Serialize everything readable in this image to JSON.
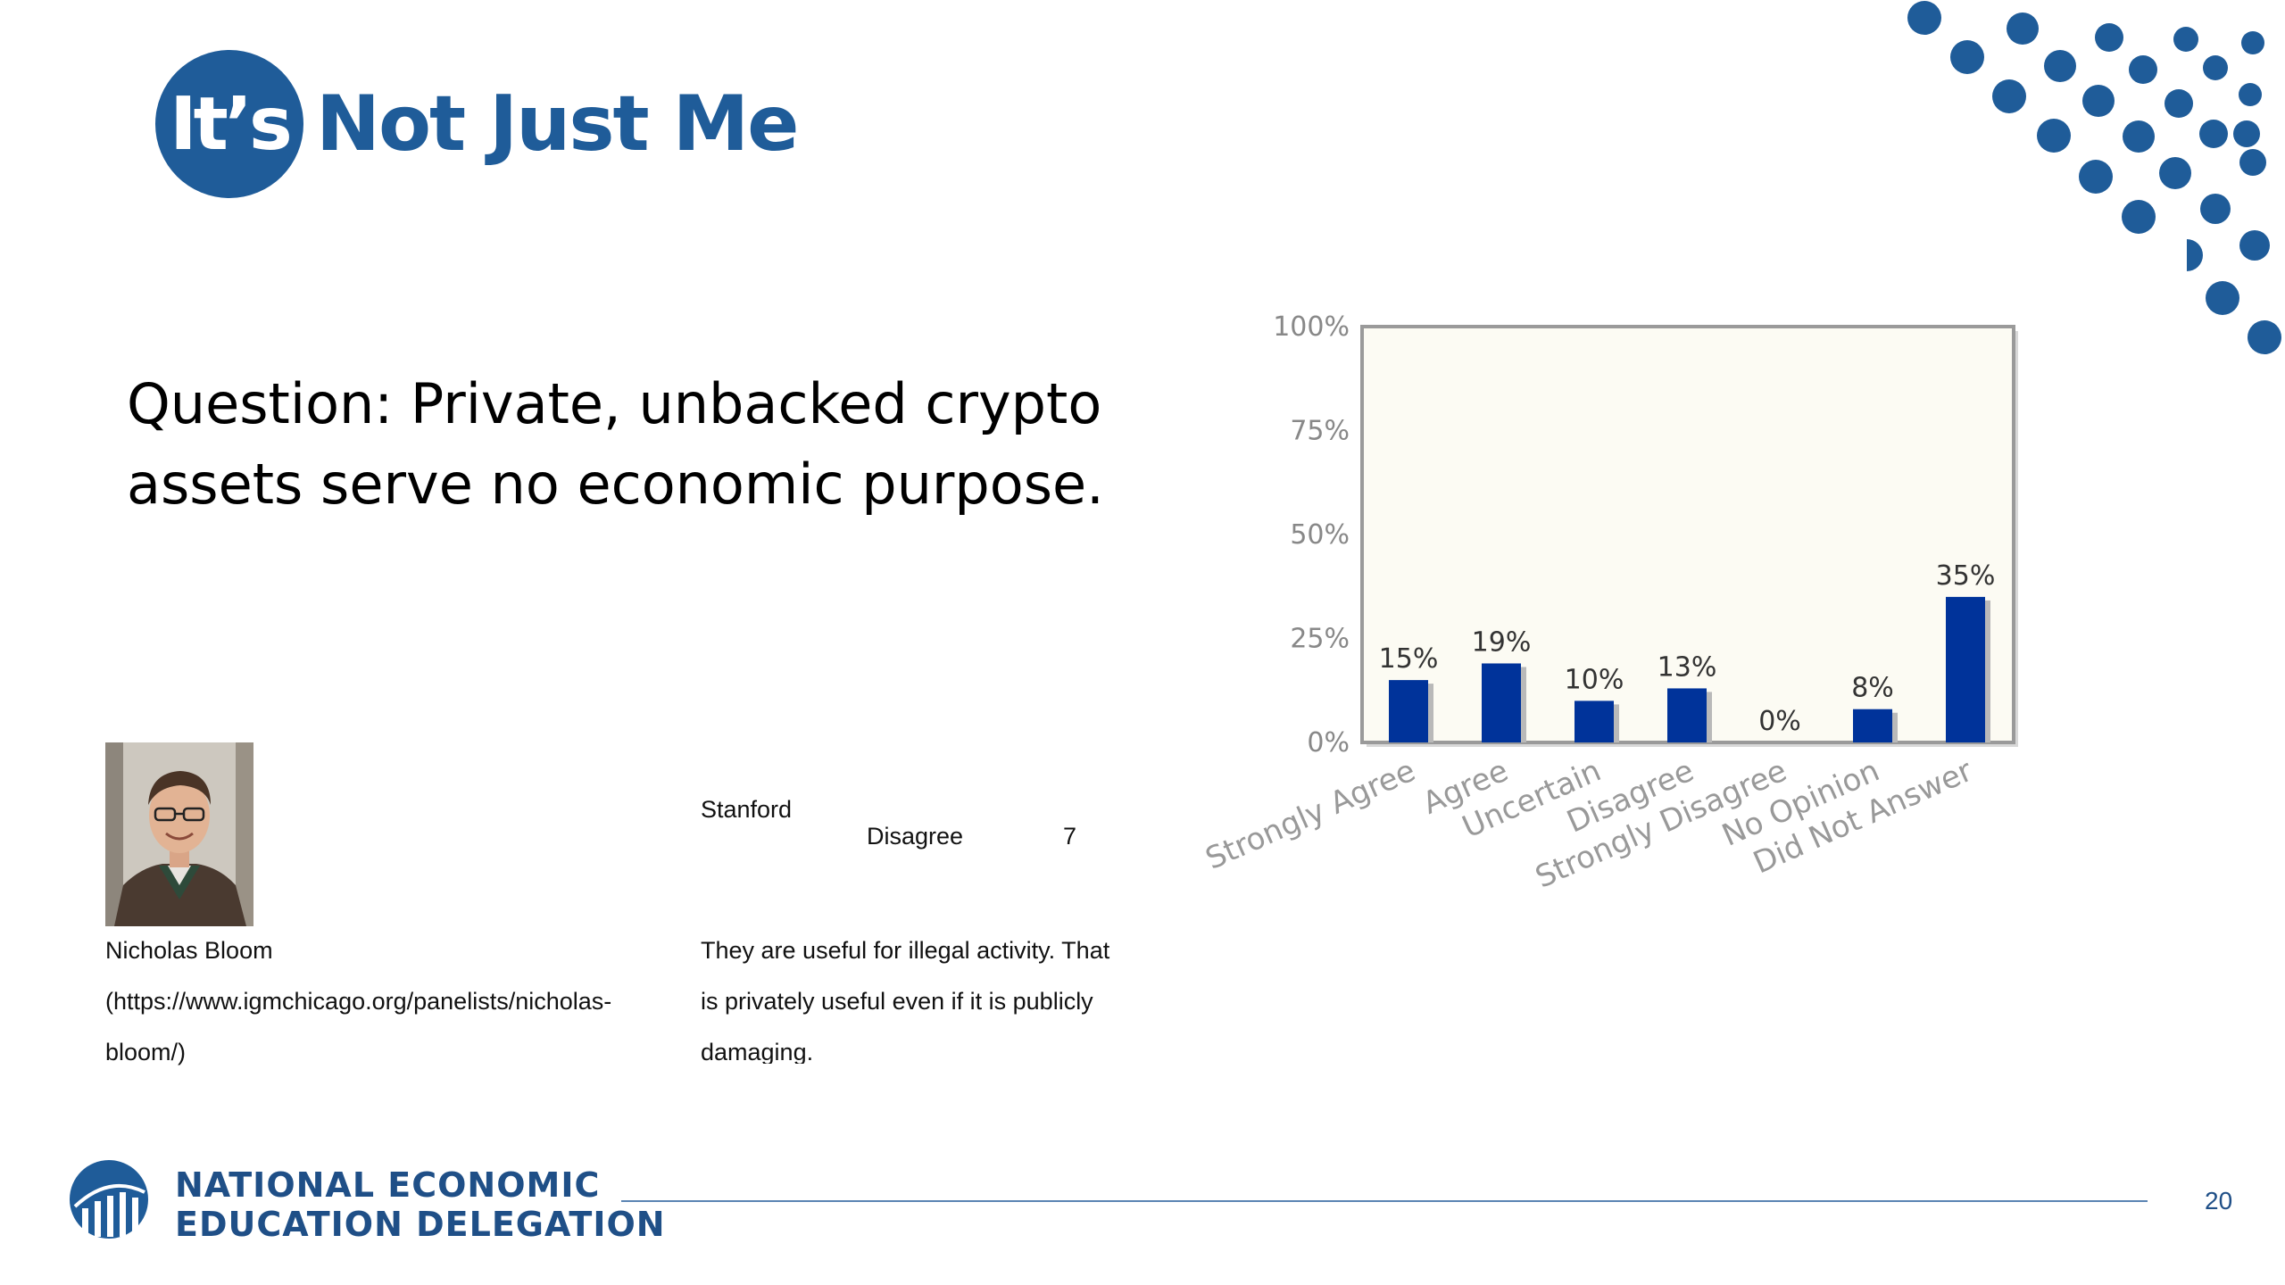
{
  "slide": {
    "title_badge": "It’s",
    "title_rest": "Not Just Me",
    "question_line1": "Question:  Private, unbacked crypto",
    "question_line2": "assets serve no economic purpose.",
    "page_number": "20"
  },
  "panelist": {
    "name": "Nicholas Bloom",
    "url_line1": "(https://www.igmchicago.org/panelists/nicholas-",
    "url_line2": "bloom/)",
    "institution": "Stanford",
    "vote": "Disagree",
    "confidence": "7",
    "comment_line1": "They are useful for illegal activity. That",
    "comment_line2": "is privately useful even if it is publicly",
    "comment_line3": "damaging."
  },
  "footer": {
    "org_line1": "NATIONAL ECONOMIC",
    "org_line2": "EDUCATION DELEGATION"
  },
  "colors": {
    "brand_blue": "#1f5c99",
    "bar_blue": "#00339a",
    "plot_bg": "#fcfbf3"
  },
  "chart_data": {
    "type": "bar",
    "categories": [
      "Strongly Agree",
      "Agree",
      "Uncertain",
      "Disagree",
      "Strongly Disagree",
      "No Opinion",
      "Did Not Answer"
    ],
    "values": [
      15,
      19,
      10,
      13,
      0,
      8,
      35
    ],
    "data_labels": [
      "15%",
      "19%",
      "10%",
      "13%",
      "0%",
      "8%",
      "35%"
    ],
    "yticks": [
      "0%",
      "25%",
      "50%",
      "75%",
      "100%"
    ],
    "ylim": [
      0,
      100
    ],
    "grid": false,
    "legend": "none"
  }
}
